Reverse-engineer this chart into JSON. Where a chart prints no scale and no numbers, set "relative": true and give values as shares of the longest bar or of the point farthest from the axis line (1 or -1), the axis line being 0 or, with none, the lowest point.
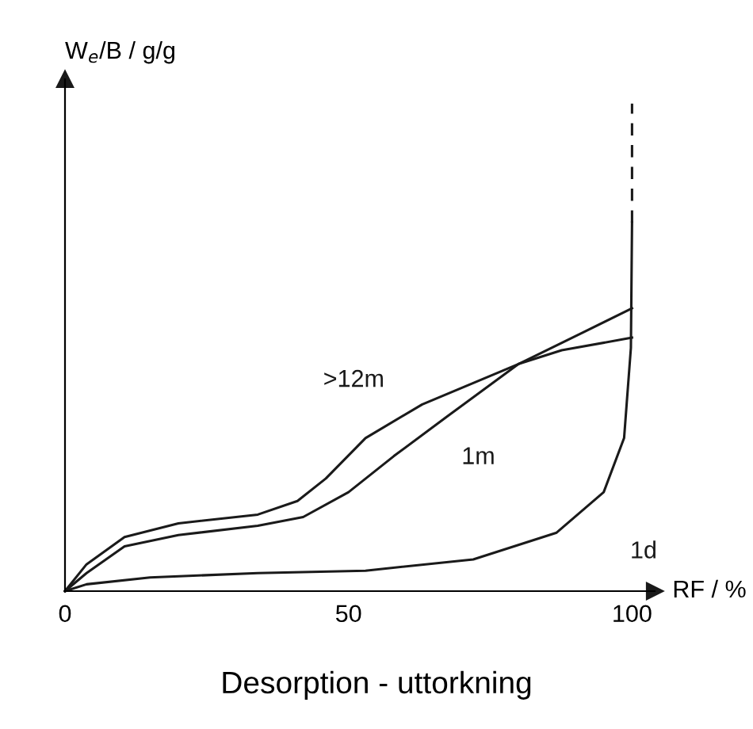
{
  "chart_data": {
    "type": "line",
    "relative": true,
    "ylabel": "W$_{e}$/B / g/g",
    "xlabel": "RF / %",
    "annotations": [
      "Desorption - uttorkning"
    ],
    "xlim": [
      0,
      104
    ],
    "xticks": [
      0,
      50,
      100
    ],
    "grid": false,
    "legend": false,
    "marker": "none",
    "line_style": "solid",
    "series": [
      {
        "name": ">12m",
        "color": "#1a1a1a",
        "x": [
          0,
          3.8,
          10.5,
          20,
          34,
          41,
          46,
          53,
          63,
          80,
          91.4,
          100
        ],
        "values": [
          0,
          0.055,
          0.111,
          0.139,
          0.157,
          0.185,
          0.231,
          0.314,
          0.383,
          0.466,
          0.531,
          0.58
        ]
      },
      {
        "name": "1m",
        "color": "#1a1a1a",
        "x": [
          0,
          3.8,
          10.5,
          20,
          34,
          42,
          50,
          58,
          67.6,
          80,
          87.6,
          100
        ],
        "values": [
          0,
          0.037,
          0.092,
          0.115,
          0.134,
          0.152,
          0.203,
          0.277,
          0.36,
          0.466,
          0.494,
          0.52
        ]
      },
      {
        "name": "1d",
        "color": "#1a1a1a",
        "x": [
          0,
          3.8,
          15,
          34,
          53,
          72,
          86.7,
          95,
          98.6,
          99.8,
          100
        ],
        "values": [
          0,
          0.014,
          0.028,
          0.037,
          0.042,
          0.065,
          0.12,
          0.203,
          0.314,
          0.499,
          0.756
        ]
      },
      {
        "color": "#1a1a1a",
        "line_style": "dashed",
        "x": [
          100,
          100
        ],
        "values": [
          0.756,
          1
        ]
      }
    ]
  }
}
